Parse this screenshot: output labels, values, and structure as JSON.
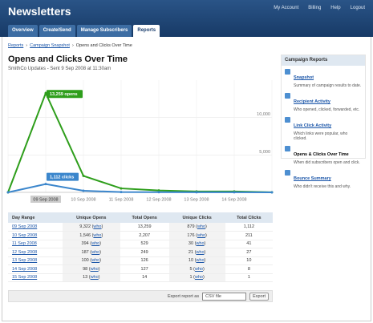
{
  "header": {
    "title": "Newsletters",
    "links": [
      "My Account",
      "Billing",
      "Help",
      "Logout"
    ]
  },
  "tabs": [
    "Overview",
    "Create/Send",
    "Manage Subscribers",
    "Reports"
  ],
  "breadcrumb": [
    "Reports",
    "Campaign Snapshot",
    "Opens and Clicks Over Time"
  ],
  "breadcrumb_sep": "›",
  "page": {
    "title": "Opens and Clicks Over Time",
    "subtitle": "SmithCo Updates - Sent 9 Sep 2008 at 11:30am"
  },
  "chart_data": {
    "type": "line",
    "categories": [
      null,
      "09 Sep 2008",
      "10 Sep 2008",
      "11 Sep 2008",
      "12 Sep 2008",
      "13 Sep 2008",
      "14 Sep 2008",
      null
    ],
    "series": [
      {
        "name": "opens",
        "color": "#2e9e1b",
        "label": "13,259 opens",
        "values": [
          0,
          13259,
          2207,
          529,
          249,
          126,
          127,
          14
        ]
      },
      {
        "name": "clicks",
        "color": "#3b86cc",
        "label": "1,112 clicks",
        "values": [
          0,
          1112,
          211,
          41,
          27,
          10,
          8,
          1
        ]
      }
    ],
    "ylim": [
      0,
      15000
    ],
    "yticks": [
      {
        "value": 5000,
        "label": "5,000"
      },
      {
        "value": 10000,
        "label": "10,000"
      }
    ],
    "grid": true
  },
  "table": {
    "columns": [
      "Day Range",
      "Unique Opens",
      "Total Opens",
      "Unique Clicks",
      "Total Clicks"
    ],
    "who": [
      "(",
      "who",
      ")"
    ],
    "rows": [
      [
        "09 Sep 2008",
        "9,322",
        "13,259",
        "879",
        "1,112"
      ],
      [
        "10 Sep 2008",
        "1,546",
        "2,207",
        "176",
        "211"
      ],
      [
        "11 Sep 2008",
        "394",
        "529",
        "30",
        "41"
      ],
      [
        "12 Sep 2008",
        "187",
        "249",
        "21",
        "27"
      ],
      [
        "13 Sep 2008",
        "100",
        "126",
        "10",
        "10"
      ],
      [
        "14 Sep 2008",
        "98",
        "127",
        "5",
        "8"
      ],
      [
        "15 Sep 2008",
        "13",
        "14",
        "1",
        "1"
      ]
    ]
  },
  "export": {
    "label": "Export report as",
    "format": "CSV file",
    "button": "Export"
  },
  "sidebar": {
    "title": "Campaign Reports",
    "items": [
      {
        "title": "Snapshot",
        "desc": "Summary of campaign results to date."
      },
      {
        "title": "Recipient Activity",
        "desc": "Who opened, clicked, forwarded, etc."
      },
      {
        "title": "Link Click Activity",
        "desc": "Which links were popular, who clicked."
      },
      {
        "title": "Opens & Clicks Over Time",
        "desc": "When did subscribers open and click."
      },
      {
        "title": "Bounce Summary",
        "desc": "Who didn't receive this and why."
      }
    ]
  }
}
